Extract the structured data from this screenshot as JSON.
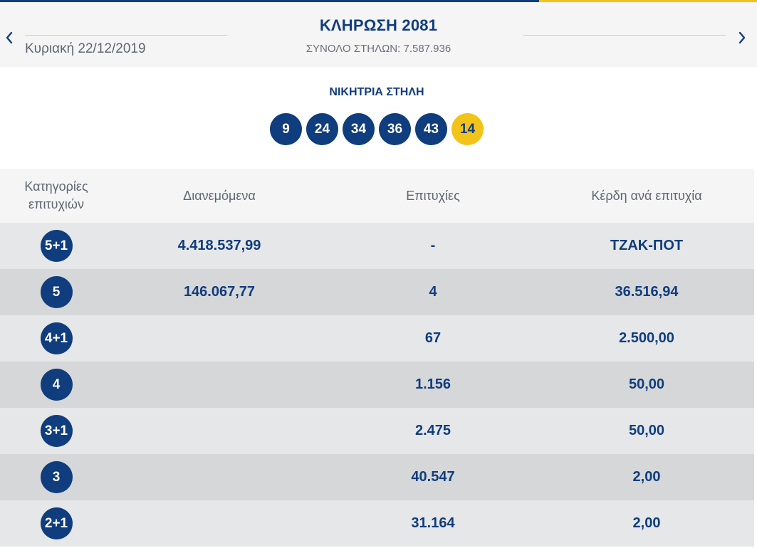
{
  "draw": {
    "title": "ΚΛΗΡΩΣΗ 2081",
    "date": "Κυριακή 22/12/2019",
    "total_columns": "ΣΥΝΟΛΟ ΣΤΗΛΩΝ: 7.587.936"
  },
  "winning": {
    "title": "ΝΙΚΗΤΡΙΑ ΣΤΗΛΗ",
    "numbers": [
      "9",
      "24",
      "34",
      "36",
      "43"
    ],
    "joker": "14"
  },
  "colors": {
    "primary": "#0f3d7d",
    "joker": "#f2c318",
    "row_light": "#e6e7e9",
    "row_dark": "#d6d7d9"
  },
  "table": {
    "headers": {
      "category": "Κατηγορίες επιτυχιών",
      "distributed": "Διανεμόμενα",
      "winners": "Επιτυχίες",
      "prize": "Κέρδη ανά επιτυχία"
    },
    "rows": [
      {
        "category": "5+1",
        "distributed": "4.418.537,99",
        "winners": "-",
        "prize": "ΤΖΑΚ-ΠΟΤ"
      },
      {
        "category": "5",
        "distributed": "146.067,77",
        "winners": "4",
        "prize": "36.516,94"
      },
      {
        "category": "4+1",
        "distributed": "",
        "winners": "67",
        "prize": "2.500,00"
      },
      {
        "category": "4",
        "distributed": "",
        "winners": "1.156",
        "prize": "50,00"
      },
      {
        "category": "3+1",
        "distributed": "",
        "winners": "2.475",
        "prize": "50,00"
      },
      {
        "category": "3",
        "distributed": "",
        "winners": "40.547",
        "prize": "2,00"
      },
      {
        "category": "2+1",
        "distributed": "",
        "winners": "31.164",
        "prize": "2,00"
      }
    ]
  },
  "icons": {
    "prev": "chevron-left-icon",
    "next": "chevron-right-icon"
  }
}
